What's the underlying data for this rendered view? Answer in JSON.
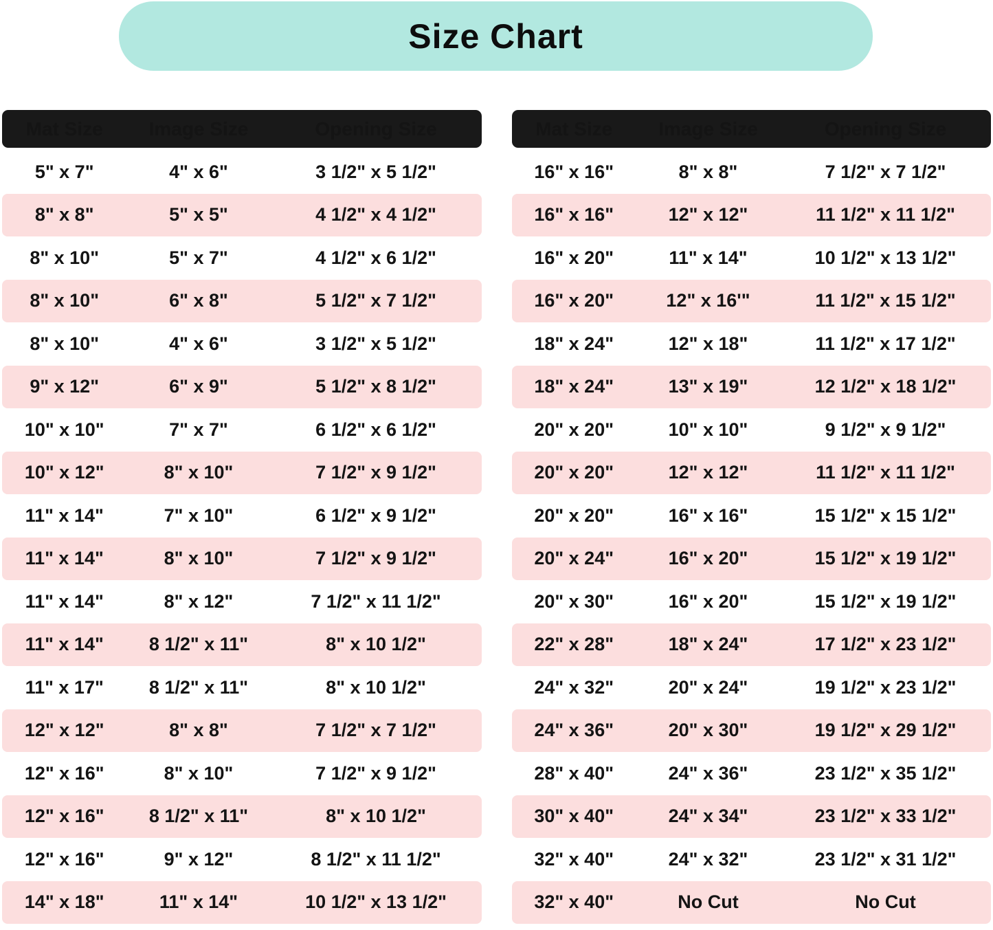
{
  "title": "Size Chart",
  "colors": {
    "banner_bg": "#b2e8e0",
    "header_bg": "#191919",
    "header_text": "#ffffff",
    "row_alt_pink": "#fcdede",
    "row_white": "#ffffff",
    "body_text": "#141414"
  },
  "left_table": {
    "headers": [
      "Mat Size",
      "Image Size",
      "Opening Size"
    ],
    "rows": [
      [
        "5\" x 7\"",
        "4\" x 6\"",
        "3 1/2\" x 5 1/2\""
      ],
      [
        "8\" x 8\"",
        "5\" x 5\"",
        "4 1/2\" x 4 1/2\""
      ],
      [
        "8\" x 10\"",
        "5\" x 7\"",
        "4 1/2\" x 6 1/2\""
      ],
      [
        "8\" x 10\"",
        "6\" x 8\"",
        "5 1/2\" x 7 1/2\""
      ],
      [
        "8\" x 10\"",
        "4\" x 6\"",
        "3 1/2\" x 5 1/2\""
      ],
      [
        "9\" x 12\"",
        "6\" x 9\"",
        "5 1/2\" x 8 1/2\""
      ],
      [
        "10\" x 10\"",
        "7\" x 7\"",
        "6 1/2\" x 6 1/2\""
      ],
      [
        "10\" x 12\"",
        "8\" x 10\"",
        "7 1/2\" x 9 1/2\""
      ],
      [
        "11\" x 14\"",
        "7\" x 10\"",
        "6 1/2\" x 9 1/2\""
      ],
      [
        "11\" x 14\"",
        "8\" x 10\"",
        "7 1/2\" x 9 1/2\""
      ],
      [
        "11\" x 14\"",
        "8\" x 12\"",
        "7 1/2\" x 11 1/2\""
      ],
      [
        "11\" x 14\"",
        "8 1/2\" x 11\"",
        "8\" x 10 1/2\""
      ],
      [
        "11\" x 17\"",
        "8 1/2\" x 11\"",
        "8\" x 10 1/2\""
      ],
      [
        "12\" x 12\"",
        "8\" x 8\"",
        "7 1/2\" x 7 1/2\""
      ],
      [
        "12\" x 16\"",
        "8\" x 10\"",
        "7 1/2\" x 9 1/2\""
      ],
      [
        "12\" x 16\"",
        "8 1/2\" x 11\"",
        "8\" x 10 1/2\""
      ],
      [
        "12\" x 16\"",
        "9\" x 12\"",
        "8 1/2\" x 11 1/2\""
      ],
      [
        "14\" x 18\"",
        "11\" x 14\"",
        "10 1/2\" x 13 1/2\""
      ]
    ]
  },
  "right_table": {
    "headers": [
      "Mat Size",
      "Image Size",
      "Opening Size"
    ],
    "rows": [
      [
        "16\" x 16\"",
        "8\" x 8\"",
        "7 1/2\" x 7 1/2\""
      ],
      [
        "16\" x 16\"",
        "12\" x 12\"",
        "11 1/2\" x 11 1/2\""
      ],
      [
        "16\" x 20\"",
        "11\" x 14\"",
        "10 1/2\" x 13 1/2\""
      ],
      [
        "16\" x 20\"",
        "12\" x 16'\"",
        "11 1/2\" x 15 1/2\""
      ],
      [
        "18\" x 24\"",
        "12\" x 18\"",
        "11 1/2\" x 17 1/2\""
      ],
      [
        "18\" x 24\"",
        "13\" x 19\"",
        "12 1/2\" x 18 1/2\""
      ],
      [
        "20\" x 20\"",
        "10\" x 10\"",
        "9 1/2\" x 9 1/2\""
      ],
      [
        "20\" x 20\"",
        "12\" x 12\"",
        "11 1/2\" x 11 1/2\""
      ],
      [
        "20\" x 20\"",
        "16\" x 16\"",
        "15 1/2\" x 15 1/2\""
      ],
      [
        "20\" x 24\"",
        "16\" x 20\"",
        "15 1/2\" x 19 1/2\""
      ],
      [
        "20\" x 30\"",
        "16\" x 20\"",
        "15 1/2\" x 19 1/2\""
      ],
      [
        "22\" x 28\"",
        "18\" x 24\"",
        "17 1/2\" x 23 1/2\""
      ],
      [
        "24\" x 32\"",
        "20\" x 24\"",
        "19 1/2\" x 23 1/2\""
      ],
      [
        "24\" x 36\"",
        "20\" x 30\"",
        "19 1/2\" x 29 1/2\""
      ],
      [
        "28\" x 40\"",
        "24\" x 36\"",
        "23 1/2\" x 35 1/2\""
      ],
      [
        "30\" x 40\"",
        "24\" x 34\"",
        "23 1/2\" x 33 1/2\""
      ],
      [
        "32\" x 40\"",
        "24\" x 32\"",
        "23 1/2\" x 31 1/2\""
      ],
      [
        "32\" x 40\"",
        "No Cut",
        "No Cut"
      ]
    ]
  },
  "chart_data": [
    {
      "type": "table",
      "title": "Size Chart (left panel)",
      "columns": [
        "Mat Size",
        "Image Size",
        "Opening Size"
      ],
      "rows": [
        [
          "5\" x 7\"",
          "4\" x 6\"",
          "3 1/2\" x 5 1/2\""
        ],
        [
          "8\" x 8\"",
          "5\" x 5\"",
          "4 1/2\" x 4 1/2\""
        ],
        [
          "8\" x 10\"",
          "5\" x 7\"",
          "4 1/2\" x 6 1/2\""
        ],
        [
          "8\" x 10\"",
          "6\" x 8\"",
          "5 1/2\" x 7 1/2\""
        ],
        [
          "8\" x 10\"",
          "4\" x 6\"",
          "3 1/2\" x 5 1/2\""
        ],
        [
          "9\" x 12\"",
          "6\" x 9\"",
          "5 1/2\" x 8 1/2\""
        ],
        [
          "10\" x 10\"",
          "7\" x 7\"",
          "6 1/2\" x 6 1/2\""
        ],
        [
          "10\" x 12\"",
          "8\" x 10\"",
          "7 1/2\" x 9 1/2\""
        ],
        [
          "11\" x 14\"",
          "7\" x 10\"",
          "6 1/2\" x 9 1/2\""
        ],
        [
          "11\" x 14\"",
          "8\" x 10\"",
          "7 1/2\" x 9 1/2\""
        ],
        [
          "11\" x 14\"",
          "8\" x 12\"",
          "7 1/2\" x 11 1/2\""
        ],
        [
          "11\" x 14\"",
          "8 1/2\" x 11\"",
          "8\" x 10 1/2\""
        ],
        [
          "11\" x 17\"",
          "8 1/2\" x 11\"",
          "8\" x 10 1/2\""
        ],
        [
          "12\" x 12\"",
          "8\" x 8\"",
          "7 1/2\" x 7 1/2\""
        ],
        [
          "12\" x 16\"",
          "8\" x 10\"",
          "7 1/2\" x 9 1/2\""
        ],
        [
          "12\" x 16\"",
          "8 1/2\" x 11\"",
          "8\" x 10 1/2\""
        ],
        [
          "12\" x 16\"",
          "9\" x 12\"",
          "8 1/2\" x 11 1/2\""
        ],
        [
          "14\" x 18\"",
          "11\" x 14\"",
          "10 1/2\" x 13 1/2\""
        ]
      ]
    },
    {
      "type": "table",
      "title": "Size Chart (right panel)",
      "columns": [
        "Mat Size",
        "Image Size",
        "Opening Size"
      ],
      "rows": [
        [
          "16\" x 16\"",
          "8\" x 8\"",
          "7 1/2\" x 7 1/2\""
        ],
        [
          "16\" x 16\"",
          "12\" x 12\"",
          "11 1/2\" x 11 1/2\""
        ],
        [
          "16\" x 20\"",
          "11\" x 14\"",
          "10 1/2\" x 13 1/2\""
        ],
        [
          "16\" x 20\"",
          "12\" x 16'\"",
          "11 1/2\" x 15 1/2\""
        ],
        [
          "18\" x 24\"",
          "12\" x 18\"",
          "11 1/2\" x 17 1/2\""
        ],
        [
          "18\" x 24\"",
          "13\" x 19\"",
          "12 1/2\" x 18 1/2\""
        ],
        [
          "20\" x 20\"",
          "10\" x 10\"",
          "9 1/2\" x 9 1/2\""
        ],
        [
          "20\" x 20\"",
          "12\" x 12\"",
          "11 1/2\" x 11 1/2\""
        ],
        [
          "20\" x 20\"",
          "16\" x 16\"",
          "15 1/2\" x 15 1/2\""
        ],
        [
          "20\" x 24\"",
          "16\" x 20\"",
          "15 1/2\" x 19 1/2\""
        ],
        [
          "20\" x 30\"",
          "16\" x 20\"",
          "15 1/2\" x 19 1/2\""
        ],
        [
          "22\" x 28\"",
          "18\" x 24\"",
          "17 1/2\" x 23 1/2\""
        ],
        [
          "24\" x 32\"",
          "20\" x 24\"",
          "19 1/2\" x 23 1/2\""
        ],
        [
          "24\" x 36\"",
          "20\" x 30\"",
          "19 1/2\" x 29 1/2\""
        ],
        [
          "28\" x 40\"",
          "24\" x 36\"",
          "23 1/2\" x 35 1/2\""
        ],
        [
          "30\" x 40\"",
          "24\" x 34\"",
          "23 1/2\" x 33 1/2\""
        ],
        [
          "32\" x 40\"",
          "24\" x 32\"",
          "23 1/2\" x 31 1/2\""
        ],
        [
          "32\" x 40\"",
          "No Cut",
          "No Cut"
        ]
      ]
    }
  ]
}
